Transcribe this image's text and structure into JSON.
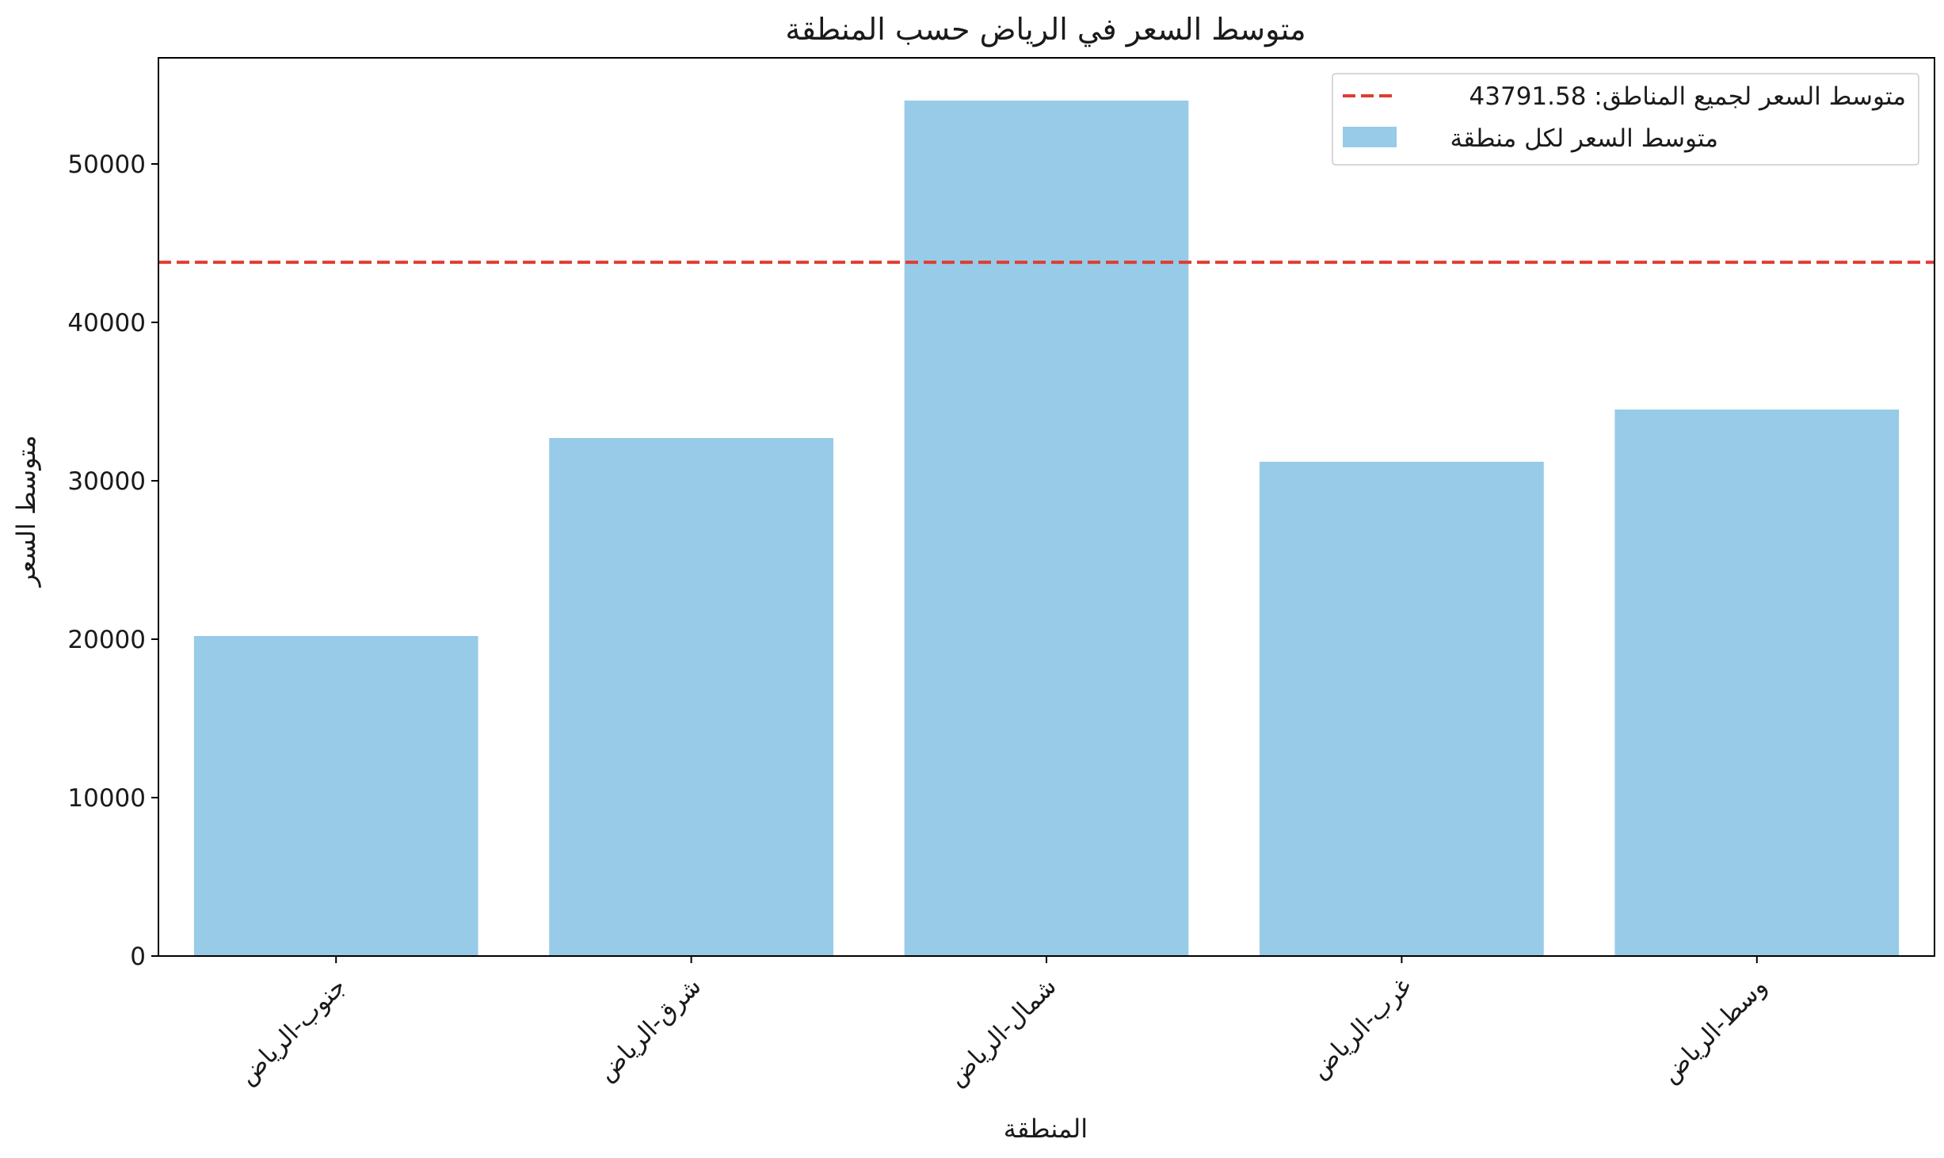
{
  "chart_data": {
    "type": "bar",
    "title": "متوسط السعر في الرياض حسب المنطقة",
    "xlabel": "المنطقة",
    "ylabel": "متوسط السعر",
    "categories": [
      "جنوب-الرياض",
      "شرق-الرياض",
      "شمال-الرياض",
      "غرب-الرياض",
      "وسط-الرياض"
    ],
    "series": [
      {
        "name": "متوسط السعر لكل منطقة",
        "values": [
          20200,
          32700,
          54000,
          31200,
          34500
        ],
        "color": "#97cbe7"
      }
    ],
    "reference_line": {
      "label": "متوسط السعر لجميع المناطق: 43791.58",
      "value": 43791.58,
      "color": "#e03c31",
      "style": "dashed"
    },
    "yticks": [
      0,
      10000,
      20000,
      30000,
      40000,
      50000
    ],
    "ylim": [
      0,
      56700
    ],
    "grid": false,
    "legend_position": "top-right"
  }
}
